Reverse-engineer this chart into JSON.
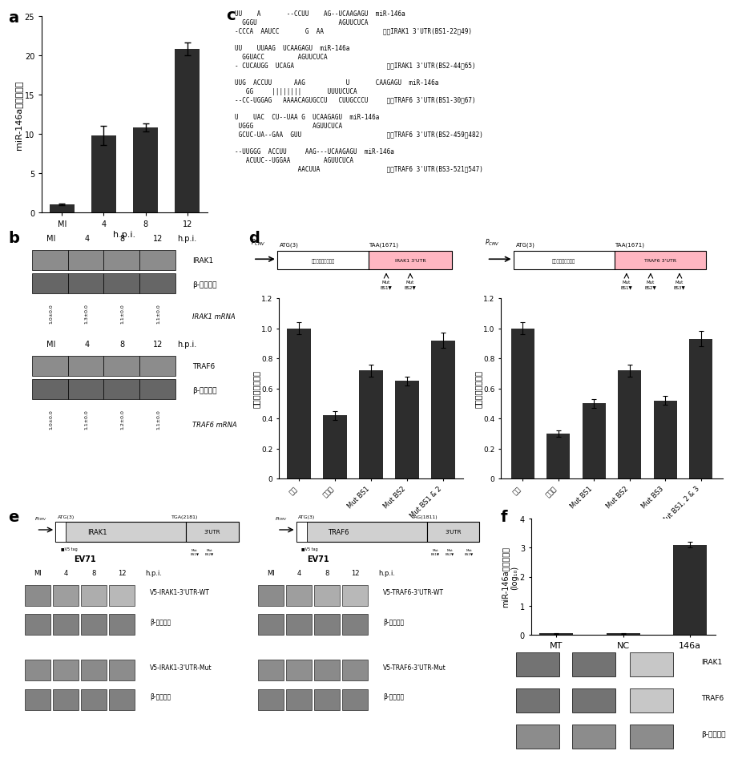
{
  "panel_a": {
    "categories": [
      "MI",
      "4",
      "8",
      "12"
    ],
    "values": [
      1.0,
      9.8,
      10.8,
      20.8
    ],
    "errors": [
      0.1,
      1.2,
      0.5,
      0.8
    ],
    "ylabel": "miR-146a相對表現量",
    "xlabel": "h.p.i.",
    "ylim": [
      0,
      25
    ],
    "yticks": [
      0,
      5,
      10,
      15,
      20,
      25
    ],
    "bar_color": "#2d2d2d",
    "label": "a"
  },
  "panel_d_left": {
    "categories": [
      "載體",
      "野生型",
      "Mut BS1",
      "Mut BS2",
      "Mut BS1 & 2"
    ],
    "values": [
      1.0,
      0.42,
      0.72,
      0.65,
      0.92
    ],
    "errors": [
      0.04,
      0.03,
      0.04,
      0.03,
      0.05
    ],
    "ylabel": "相對螢光素酉活性",
    "ylim": [
      0,
      1.2
    ],
    "yticks": [
      0,
      0.2,
      0.4,
      0.6,
      0.8,
      1.0,
      1.2
    ],
    "bar_color": "#2d2d2d",
    "label": "d"
  },
  "panel_d_right": {
    "categories": [
      "載體",
      "野生型",
      "Mut BS1",
      "Mut BS2",
      "Mut BS3",
      "Mut BS1, 2 & 3"
    ],
    "values": [
      1.0,
      0.3,
      0.5,
      0.72,
      0.52,
      0.93
    ],
    "errors": [
      0.04,
      0.02,
      0.03,
      0.04,
      0.03,
      0.05
    ],
    "ylabel": "相對螢光素酉活性",
    "ylim": [
      0,
      1.2
    ],
    "yticks": [
      0,
      0.2,
      0.4,
      0.6,
      0.8,
      1.0,
      1.2
    ],
    "bar_color": "#2d2d2d"
  },
  "panel_f": {
    "categories": [
      "MT",
      "NC",
      "146a"
    ],
    "values": [
      0.05,
      0.05,
      3.1
    ],
    "errors": [
      0.01,
      0.01,
      0.1
    ],
    "ylabel": "miR-146a相對表現量\n(log₁₀)",
    "ylim": [
      0,
      4
    ],
    "yticks": [
      0,
      1,
      2,
      3,
      4
    ],
    "bar_color": "#2d2d2d",
    "label": "f",
    "western_labels": [
      "IRAK1",
      "TRAF6",
      "β-肌動蛋白"
    ]
  },
  "bg_color": "#ffffff",
  "bar_color": "#2d2d2d",
  "label_fontsize": 14,
  "tick_fontsize": 7,
  "axis_label_fontsize": 8
}
